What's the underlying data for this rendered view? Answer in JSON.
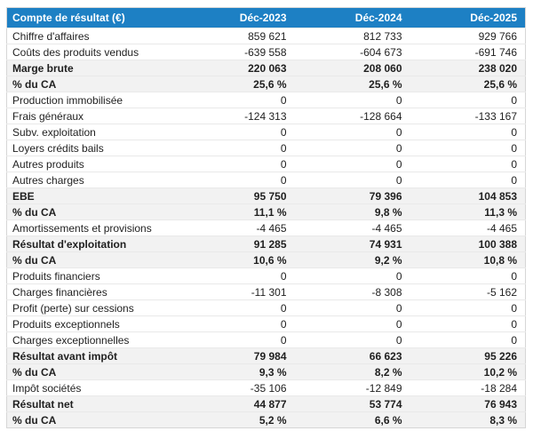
{
  "colors": {
    "header_bg": "#1d80c4",
    "header_text": "#ffffff",
    "highlight_row_bg": "#f2f2f2",
    "row_border": "#e9e9e9",
    "table_border": "#d6d6d6",
    "text": "#1f1f1f"
  },
  "table": {
    "header_label": "Compte de résultat (€)",
    "columns": [
      "Déc-2023",
      "Déc-2024",
      "Déc-2025"
    ],
    "rows": [
      {
        "label": "Chiffre d'affaires",
        "values": [
          "859 621",
          "812 733",
          "929 766"
        ],
        "emphasis": false
      },
      {
        "label": "Coûts des produits vendus",
        "values": [
          "-639 558",
          "-604 673",
          "-691 746"
        ],
        "emphasis": false
      },
      {
        "label": "Marge brute",
        "values": [
          "220 063",
          "208 060",
          "238 020"
        ],
        "emphasis": true
      },
      {
        "label": "% du CA",
        "values": [
          "25,6 %",
          "25,6 %",
          "25,6 %"
        ],
        "emphasis": true
      },
      {
        "label": "Production immobilisée",
        "values": [
          "0",
          "0",
          "0"
        ],
        "emphasis": false
      },
      {
        "label": "Frais généraux",
        "values": [
          "-124 313",
          "-128 664",
          "-133 167"
        ],
        "emphasis": false
      },
      {
        "label": "Subv. exploitation",
        "values": [
          "0",
          "0",
          "0"
        ],
        "emphasis": false
      },
      {
        "label": "Loyers crédits bails",
        "values": [
          "0",
          "0",
          "0"
        ],
        "emphasis": false
      },
      {
        "label": "Autres produits",
        "values": [
          "0",
          "0",
          "0"
        ],
        "emphasis": false
      },
      {
        "label": "Autres charges",
        "values": [
          "0",
          "0",
          "0"
        ],
        "emphasis": false
      },
      {
        "label": "EBE",
        "values": [
          "95 750",
          "79 396",
          "104 853"
        ],
        "emphasis": true
      },
      {
        "label": "% du CA",
        "values": [
          "11,1 %",
          "9,8 %",
          "11,3 %"
        ],
        "emphasis": true
      },
      {
        "label": "Amortissements et provisions",
        "values": [
          "-4 465",
          "-4 465",
          "-4 465"
        ],
        "emphasis": false
      },
      {
        "label": "Résultat d'exploitation",
        "values": [
          "91 285",
          "74 931",
          "100 388"
        ],
        "emphasis": true
      },
      {
        "label": "% du CA",
        "values": [
          "10,6 %",
          "9,2 %",
          "10,8 %"
        ],
        "emphasis": true
      },
      {
        "label": "Produits financiers",
        "values": [
          "0",
          "0",
          "0"
        ],
        "emphasis": false
      },
      {
        "label": "Charges financières",
        "values": [
          "-11 301",
          "-8 308",
          "-5 162"
        ],
        "emphasis": false
      },
      {
        "label": "Profit (perte) sur cessions",
        "values": [
          "0",
          "0",
          "0"
        ],
        "emphasis": false
      },
      {
        "label": "Produits exceptionnels",
        "values": [
          "0",
          "0",
          "0"
        ],
        "emphasis": false
      },
      {
        "label": "Charges exceptionnelles",
        "values": [
          "0",
          "0",
          "0"
        ],
        "emphasis": false
      },
      {
        "label": "Résultat avant impôt",
        "values": [
          "79 984",
          "66 623",
          "95 226"
        ],
        "emphasis": true
      },
      {
        "label": "% du CA",
        "values": [
          "9,3 %",
          "8,2 %",
          "10,2 %"
        ],
        "emphasis": true
      },
      {
        "label": "Impôt sociétés",
        "values": [
          "-35 106",
          "-12 849",
          "-18 284"
        ],
        "emphasis": false
      },
      {
        "label": "Résultat net",
        "values": [
          "44 877",
          "53 774",
          "76 943"
        ],
        "emphasis": true
      },
      {
        "label": "% du CA",
        "values": [
          "5,2 %",
          "6,6 %",
          "8,3 %"
        ],
        "emphasis": true
      }
    ]
  }
}
